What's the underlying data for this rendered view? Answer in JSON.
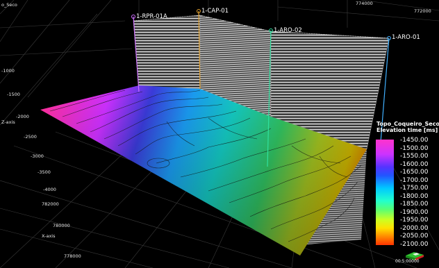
{
  "axes": {
    "corner_label": "o_Seco",
    "top_ticks": [
      "774000",
      "772000"
    ],
    "left_ticks": [
      "-1000",
      "-1500",
      "-2000",
      "-2500",
      "-3000",
      "-3500",
      "-4000"
    ],
    "y_axis_label": "Z-axis",
    "x_axis_ticks": [
      "782000",
      "780000",
      "778000"
    ],
    "x_axis_label": "X-axis"
  },
  "wells": [
    {
      "name": "1-RPR-01A",
      "color": "#d070ff"
    },
    {
      "name": "1-CAP-01",
      "color": "#e0a030"
    },
    {
      "name": "1-ARO-02",
      "color": "#30e0a0"
    },
    {
      "name": "1-ARO-01",
      "color": "#40b0ff"
    }
  ],
  "legend": {
    "title_line1": "Topo_Coqueiro_Seco",
    "title_line2": "Elevation time [ms]",
    "labels": [
      "-1450.00",
      "-1500.00",
      "-1550.00",
      "-1600.00",
      "-1650.00",
      "-1700.00",
      "-1750.00",
      "-1800.00",
      "-1850.00",
      "-1900.00",
      "-1950.00",
      "-2000.00",
      "-2050.00",
      "-2100.00"
    ]
  },
  "orientation": {
    "label": "00:5:00000"
  }
}
